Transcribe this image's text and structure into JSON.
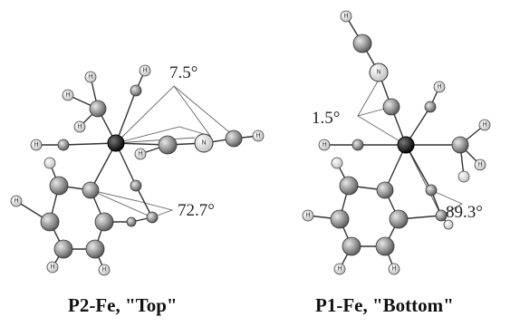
{
  "panels": [
    {
      "caption": "P2-Fe, \"Top\"",
      "angles": [
        "7.5°",
        "72.7°"
      ]
    },
    {
      "caption": "P1-Fe, \"Bottom\"",
      "angles": [
        "1.5°",
        "89.3°"
      ]
    }
  ],
  "atom_labels": {
    "hydrogen": "H",
    "nitrogen": "N"
  },
  "colors": {
    "iron": "#111111",
    "heavy_atom": "#9a9a9a",
    "hydrogen": "#e6e6e6",
    "bond": "#333333"
  }
}
